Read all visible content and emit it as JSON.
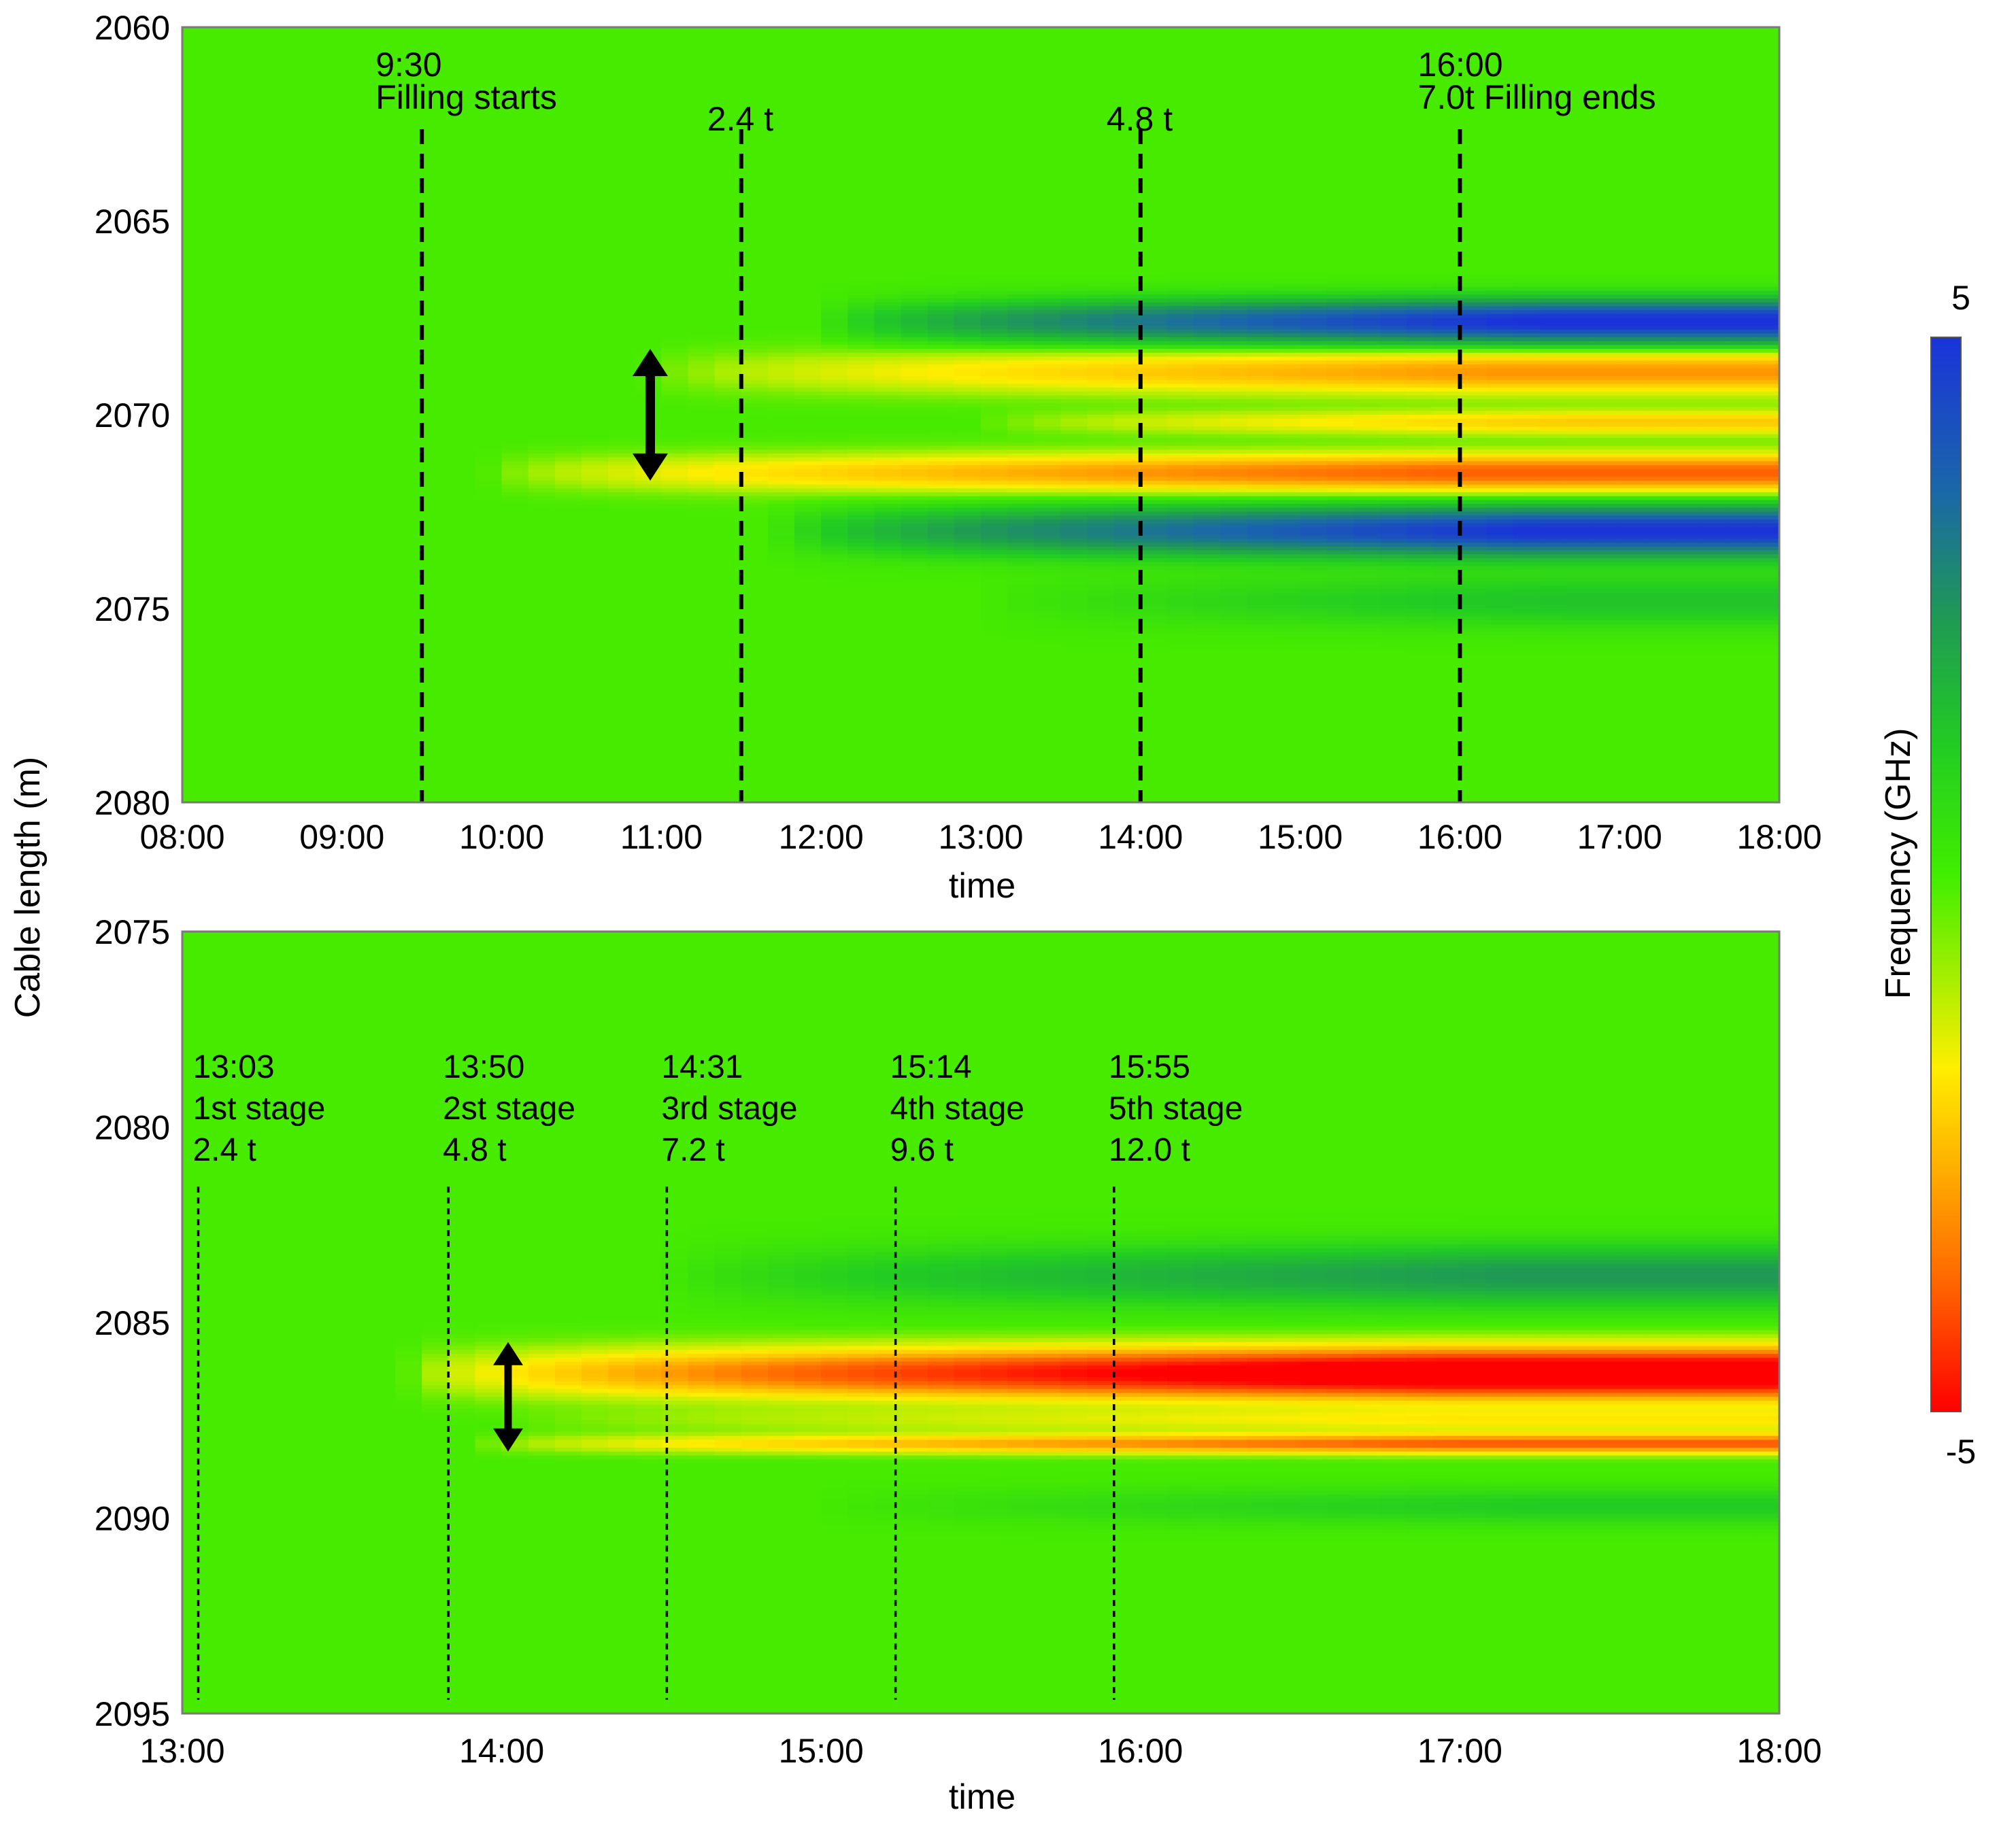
{
  "chart_data": [
    {
      "type": "heatmap",
      "panel": "top",
      "xlabel": "time",
      "ylabel": "Cable length (m)",
      "x_tick_labels": [
        "08:00",
        "09:00",
        "10:00",
        "11:00",
        "12:00",
        "13:00",
        "14:00",
        "15:00",
        "16:00",
        "17:00",
        "18:00"
      ],
      "x_range_hours": [
        8,
        18
      ],
      "y_tick_labels": [
        "2060",
        "2065",
        "2070",
        "2075",
        "2080"
      ],
      "y_range": [
        2060,
        2080
      ],
      "markers": [
        {
          "time": 9.5,
          "label_lines": [
            "9:30",
            "Filling  starts"
          ]
        },
        {
          "time": 11.5,
          "label_lines": [
            "2.4 t"
          ]
        },
        {
          "time": 14.0,
          "label_lines": [
            "4.8 t"
          ]
        },
        {
          "time": 16.0,
          "label_lines": [
            "16:00",
            "7.0t Filling  ends"
          ]
        }
      ],
      "arrow": {
        "time": 10.93,
        "from": 2068.3,
        "to": 2071.7
      },
      "bands": [
        {
          "center": 2067.6,
          "width": 0.8,
          "peak": 5.2,
          "start": 12.0
        },
        {
          "center": 2068.9,
          "width": 0.8,
          "peak": -2.6,
          "start": 10.9
        },
        {
          "center": 2070.2,
          "width": 0.45,
          "peak": -1.8,
          "start": 13.0
        },
        {
          "center": 2071.5,
          "width": 0.7,
          "peak": -3.4,
          "start": 9.9
        },
        {
          "center": 2073.0,
          "width": 0.9,
          "peak": 5.0,
          "start": 11.7
        },
        {
          "center": 2074.8,
          "width": 1.0,
          "peak": 1.0,
          "start": 13.0
        }
      ]
    },
    {
      "type": "heatmap",
      "panel": "bottom",
      "xlabel": "time",
      "x_tick_labels": [
        "13:00",
        "14:00",
        "15:00",
        "16:00",
        "17:00",
        "18:00"
      ],
      "x_range_hours": [
        13,
        18
      ],
      "y_tick_labels": [
        "2075",
        "2080",
        "2085",
        "2090",
        "2095"
      ],
      "y_range": [
        2075,
        2095
      ],
      "markers": [
        {
          "time": 13.05,
          "label_lines": [
            "13:03",
            "1st stage",
            "2.4 t"
          ]
        },
        {
          "time": 13.833,
          "label_lines": [
            "13:50",
            "2st stage",
            "4.8 t"
          ]
        },
        {
          "time": 14.517,
          "label_lines": [
            "14:31",
            "3rd stage",
            "7.2 t"
          ]
        },
        {
          "time": 15.233,
          "label_lines": [
            "15:14",
            "4th stage",
            "9.6 t"
          ]
        },
        {
          "time": 15.917,
          "label_lines": [
            "15:55",
            "5th stage",
            "12.0 t"
          ]
        }
      ],
      "arrow": {
        "time": 14.02,
        "from": 2085.5,
        "to": 2088.3
      },
      "bands": [
        {
          "center": 2083.8,
          "width": 1.1,
          "peak": 2.0,
          "start": 14.5
        },
        {
          "center": 2086.3,
          "width": 0.9,
          "peak": -6.5,
          "start": 13.7
        },
        {
          "center": 2087.5,
          "width": 0.45,
          "peak": -1.2,
          "start": 14.0
        },
        {
          "center": 2088.1,
          "width": 0.35,
          "peak": -3.5,
          "start": 13.9
        },
        {
          "center": 2089.7,
          "width": 0.7,
          "peak": 0.8,
          "start": 15.0
        }
      ]
    }
  ],
  "colorbar": {
    "title": "Frequency  (GHz)",
    "max_label": "5",
    "min_label": "-5",
    "range": [
      -5,
      5
    ]
  }
}
